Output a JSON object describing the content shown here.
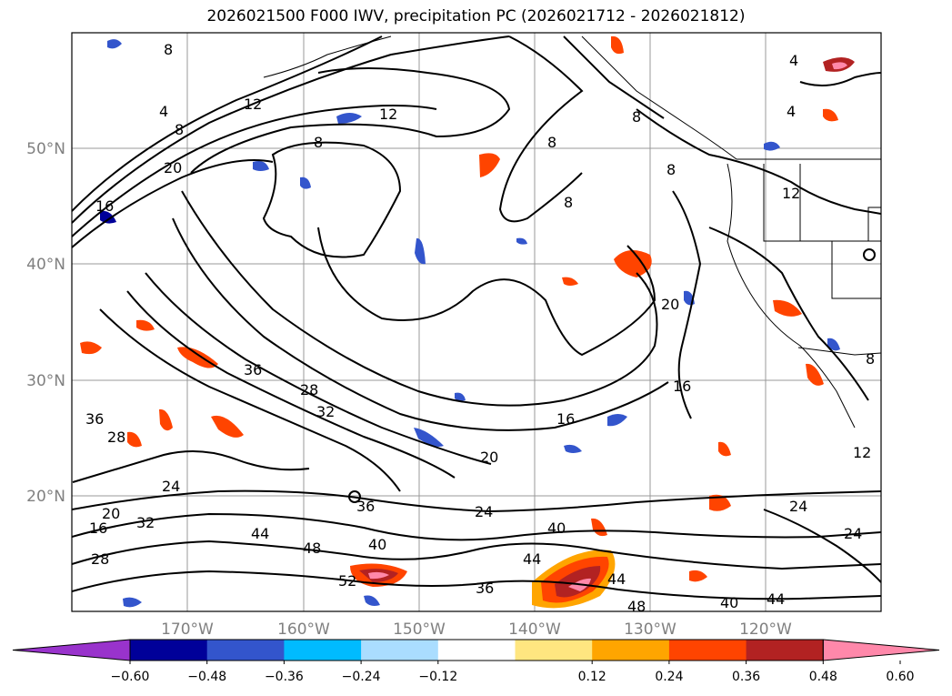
{
  "title": "2026021500 F000 IWV, precipitation PC (2026021712 - 2026021812)",
  "map": {
    "projection": "PlateCarree",
    "lon_range": [
      -180,
      -110
    ],
    "lat_range": [
      10,
      60
    ],
    "lat_labels": [
      "50°N",
      "40°N",
      "30°N",
      "20°N"
    ],
    "lon_labels": [
      "170°W",
      "160°W",
      "150°W",
      "140°W",
      "130°W",
      "120°W"
    ],
    "gridlines": true,
    "contour_field": "IWV",
    "contour_labels": [
      "4",
      "8",
      "12",
      "16",
      "20",
      "24",
      "28",
      "32",
      "36",
      "40",
      "44",
      "48",
      "52"
    ]
  },
  "colorbar": {
    "orientation": "horizontal",
    "extend": "both",
    "ticks": [
      "−0.60",
      "−0.48",
      "−0.36",
      "−0.24",
      "−0.12",
      "0.12",
      "0.24",
      "0.36",
      "0.48",
      "0.60"
    ],
    "colors": [
      "#9933cc",
      "#000099",
      "#3355cc",
      "#00bbff",
      "#aaddff",
      "#ffffff",
      "#ffe680",
      "#ffa500",
      "#ff4400",
      "#b22222",
      "#ff88aa"
    ]
  }
}
